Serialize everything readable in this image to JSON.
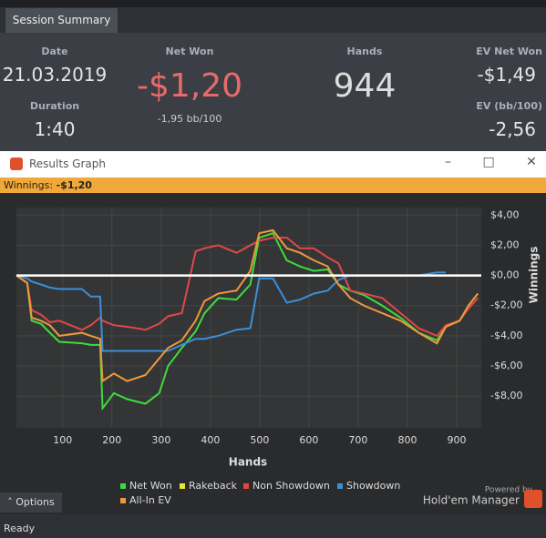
{
  "tab": "Session Summary",
  "summary": {
    "date_label": "Date",
    "date": "21.03.2019",
    "duration_label": "Duration",
    "duration": "1:40",
    "net_won_label": "Net Won",
    "net_won": "-$1,20",
    "net_won_bb": "-1,95 bb/100",
    "hands_label": "Hands",
    "hands": "944",
    "ev_net_won_label": "EV Net Won",
    "ev_net_won": "-$1,49",
    "ev_bb_label": "EV (bb/100)",
    "ev_bb": "-2,56"
  },
  "window": {
    "title": "Results Graph",
    "banner_label": "Winnings:",
    "banner_value": "-$1,20"
  },
  "chart_data": {
    "type": "line",
    "xlabel": "Hands",
    "ylabel": "Winnings",
    "x": [
      6,
      28,
      37,
      56,
      74,
      93,
      139,
      157,
      176,
      181,
      204,
      231,
      268,
      296,
      314,
      342,
      370,
      388,
      416,
      453,
      481,
      499,
      527,
      555,
      582,
      610,
      638,
      660,
      684,
      712,
      749,
      786,
      823,
      860,
      878,
      906,
      924,
      943
    ],
    "series": [
      {
        "name": "Net Won",
        "color": "#3ddc3d",
        "values": [
          0,
          -0.5,
          -3,
          -3.2,
          -3.8,
          -4.4,
          -4.5,
          -4.6,
          -4.6,
          -8.8,
          -7.8,
          -8.2,
          -8.5,
          -7.8,
          -6,
          -4.8,
          -3.7,
          -2.5,
          -1.5,
          -1.6,
          -0.6,
          2.5,
          2.8,
          1,
          0.6,
          0.3,
          0.4,
          -0.6,
          -1,
          -1.3,
          -2,
          -2.8,
          -3.8,
          -4.3,
          -3.4,
          -3,
          -2,
          -1.2
        ]
      },
      {
        "name": "Rakeback",
        "color": "#e8e83a",
        "values": [
          0,
          0,
          0,
          0,
          0,
          0,
          0,
          0,
          0,
          0,
          0,
          0,
          0,
          0,
          0,
          0,
          0,
          0,
          0,
          0,
          0,
          0,
          0,
          0,
          0,
          0,
          0,
          0,
          0,
          0,
          0,
          0,
          0,
          0,
          0,
          0,
          0,
          0
        ]
      },
      {
        "name": "Non Showdown",
        "color": "#e04848",
        "values": [
          0,
          -0.5,
          -2.3,
          -2.6,
          -3.1,
          -3,
          -3.6,
          -3.3,
          -2.8,
          -3,
          -3.3,
          -3.4,
          -3.6,
          -3.2,
          -2.7,
          -2.5,
          1.6,
          1.8,
          2,
          1.5,
          2,
          2.3,
          2.5,
          2.5,
          1.8,
          1.8,
          1.2,
          0.8,
          -1,
          -1.2,
          -1.5,
          -2.5,
          -3.5,
          -4,
          -3.3,
          -3,
          -2.2,
          -1.5
        ]
      },
      {
        "name": "Showdown",
        "color": "#3a8fd8",
        "values": [
          0,
          -0.2,
          -0.4,
          -0.6,
          -0.8,
          -0.9,
          -0.9,
          -1.4,
          -1.4,
          -5,
          -5,
          -5,
          -5,
          -5,
          -5,
          -4.6,
          -4.2,
          -4.2,
          -4,
          -3.6,
          -3.5,
          -0.2,
          -0.2,
          -1.8,
          -1.6,
          -1.2,
          -1,
          -0.3,
          0,
          0,
          0,
          0,
          0,
          0.2,
          0.2,
          null,
          null,
          null
        ]
      },
      {
        "name": "All-In EV",
        "color": "#f0983a",
        "values": [
          0,
          -0.5,
          -2.8,
          -3,
          -3.3,
          -4,
          -3.8,
          -4,
          -4.2,
          -7,
          -6.5,
          -7,
          -6.6,
          -5.5,
          -4.8,
          -4.3,
          -3,
          -1.7,
          -1.2,
          -1,
          0.3,
          2.8,
          3,
          1.8,
          1.5,
          1,
          0.6,
          -0.6,
          -1.5,
          -2,
          -2.5,
          -3,
          -3.8,
          -4.5,
          -3.4,
          -3,
          -2,
          -1.2
        ]
      }
    ],
    "xlim": [
      6,
      950
    ],
    "ylim": [
      -10.1,
      4.5
    ],
    "xticks": [
      100,
      200,
      300,
      400,
      500,
      600,
      700,
      800,
      900
    ],
    "yticks": [
      {
        "value": 4,
        "label": "$4,00"
      },
      {
        "value": 2,
        "label": "$2,00"
      },
      {
        "value": 0,
        "label": "$0,00"
      },
      {
        "value": -2,
        "label": "-$2,00"
      },
      {
        "value": -4,
        "label": "-$4,00"
      },
      {
        "value": -6,
        "label": "-$6,00"
      },
      {
        "value": -8,
        "label": "-$8,00"
      }
    ],
    "grid": true
  },
  "branding": {
    "powered": "Powered by",
    "product": "Hold'em Manager"
  },
  "options": "Options",
  "status": "Ready"
}
